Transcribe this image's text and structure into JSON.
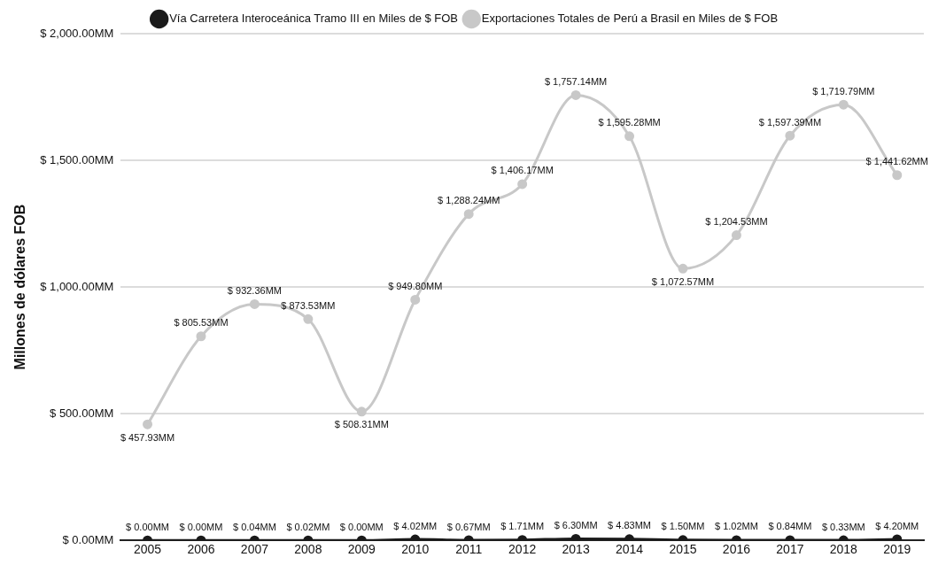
{
  "chart_data": {
    "type": "line",
    "ylabel": "Millones de dólares FOB",
    "categories": [
      "2005",
      "2006",
      "2007",
      "2008",
      "2009",
      "2010",
      "2011",
      "2012",
      "2013",
      "2014",
      "2015",
      "2016",
      "2017",
      "2018",
      "2019"
    ],
    "series": [
      {
        "name": "Vía Carretera Interoceánica Tramo III en Miles de $ FOB",
        "color": "#1a1a1a",
        "values": [
          0,
          0,
          0.04,
          0.02,
          0,
          4.02,
          0.67,
          1.71,
          6.3,
          4.83,
          1.5,
          1.02,
          0.84,
          0.33,
          4.2
        ],
        "value_labels": [
          "$ 0.00MM",
          "$ 0.00MM",
          "$ 0.04MM",
          "$ 0.02MM",
          "$ 0.00MM",
          "$ 4.02MM",
          "$ 0.67MM",
          "$ 1.71MM",
          "$ 6.30MM",
          "$ 4.83MM",
          "$ 1.50MM",
          "$ 1.02MM",
          "$ 0.84MM",
          "$ 0.33MM",
          "$ 4.20MM"
        ]
      },
      {
        "name": "Exportaciones Totales de Perú a Brasil en Miles de $ FOB",
        "color": "#c8c8c8",
        "values": [
          457.93,
          805.53,
          932.36,
          873.53,
          508.31,
          949.8,
          1288.24,
          1406.17,
          1757.14,
          1595.28,
          1072.57,
          1204.53,
          1597.39,
          1719.79,
          1441.62
        ],
        "value_labels": [
          "$ 457.93MM",
          "$ 805.53MM",
          "$ 932.36MM",
          "$ 873.53MM",
          "$ 508.31MM",
          "$ 949.80MM",
          "$ 1,288.24MM",
          "$ 1,406.17MM",
          "$ 1,757.14MM",
          "$ 1,595.28MM",
          "$ 1,072.57MM",
          "$ 1,204.53MM",
          "$ 1,597.39MM",
          "$ 1,719.79MM",
          "$ 1,441.62MM"
        ]
      }
    ],
    "ylim": [
      0,
      2000
    ],
    "yticks": [
      {
        "value": 0,
        "label": "$ 0.00MM"
      },
      {
        "value": 500,
        "label": "$ 500.00MM"
      },
      {
        "value": 1000,
        "label": "$ 1,000.00MM"
      },
      {
        "value": 1500,
        "label": "$ 1,500.00MM"
      },
      {
        "value": 2000,
        "label": "$ 2,000.00MM"
      }
    ],
    "grid": "y",
    "legend": "top",
    "marker": "circle",
    "line_style": "solid"
  }
}
